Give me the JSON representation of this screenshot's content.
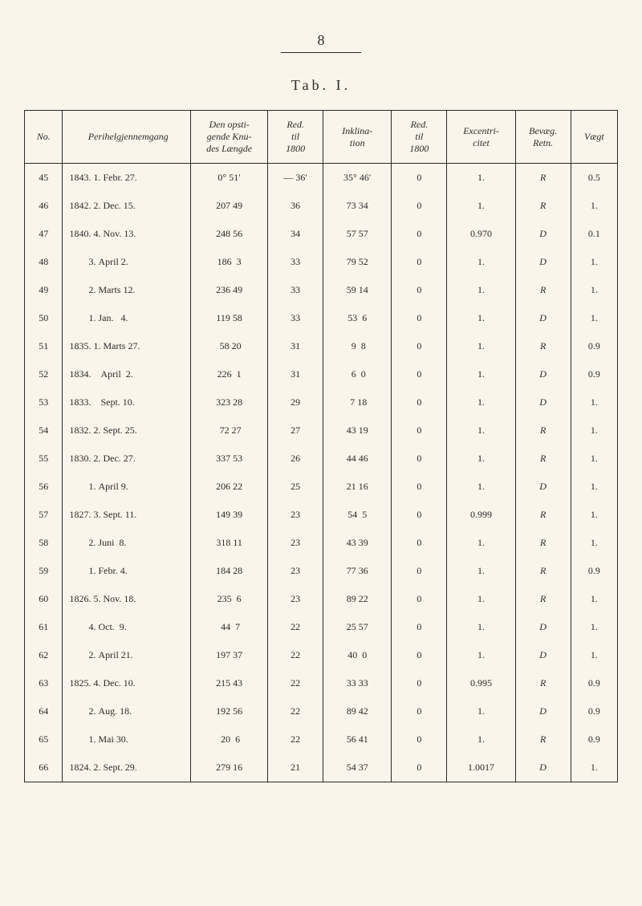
{
  "page_number": "8",
  "title": "Tab. I.",
  "headers": {
    "no": "No.",
    "peri": "Perihelgjennemgang",
    "knu": "Den opsti-<br>gende Knu-<br>des Længde",
    "red1": "Red.<br>til<br>1800",
    "ink": "Inklina-<br>tion",
    "red2": "Red.<br>til<br>1800",
    "exc": "Excentri-<br>citet",
    "bev": "Bevæg.<br>Retn.",
    "vag": "Vægt"
  },
  "rows": [
    {
      "no": "45",
      "peri": "1843. 1. Febr. 27.",
      "knu": "0° 51′",
      "red1": "— 36′",
      "ink": "35° 46′",
      "red2": "0",
      "exc": "1.",
      "bev": "R",
      "vag": "0.5"
    },
    {
      "no": "46",
      "peri": "1842. 2. Dec. 15.",
      "knu": "207 49",
      "red1": "36",
      "ink": "73 34",
      "red2": "0",
      "exc": "1.",
      "bev": "R",
      "vag": "1."
    },
    {
      "no": "47",
      "peri": "1840. 4. Nov. 13.",
      "knu": "248 56",
      "red1": "34",
      "ink": "57 57",
      "red2": "0",
      "exc": "0.970",
      "bev": "D",
      "vag": "0.1"
    },
    {
      "no": "48",
      "peri": "        3. April 2.",
      "knu": "186  3",
      "red1": "33",
      "ink": "79 52",
      "red2": "0",
      "exc": "1.",
      "bev": "D",
      "vag": "1."
    },
    {
      "no": "49",
      "peri": "        2. Marts 12.",
      "knu": "236 49",
      "red1": "33",
      "ink": "59 14",
      "red2": "0",
      "exc": "1.",
      "bev": "R",
      "vag": "1."
    },
    {
      "no": "50",
      "peri": "        1. Jan.   4.",
      "knu": "119 58",
      "red1": "33",
      "ink": "53  6",
      "red2": "0",
      "exc": "1.",
      "bev": "D",
      "vag": "1."
    },
    {
      "no": "51",
      "peri": "1835. 1. Marts 27.",
      "knu": " 58 20",
      "red1": "31",
      "ink": " 9  8",
      "red2": "0",
      "exc": "1.",
      "bev": "R",
      "vag": "0.9"
    },
    {
      "no": "52",
      "peri": "1834.    April  2.",
      "knu": "226  1",
      "red1": "31",
      "ink": " 6  0",
      "red2": "0",
      "exc": "1.",
      "bev": "D",
      "vag": "0.9"
    },
    {
      "no": "53",
      "peri": "1833.    Sept. 10.",
      "knu": "323 28",
      "red1": "29",
      "ink": " 7 18",
      "red2": "0",
      "exc": "1.",
      "bev": "D",
      "vag": "1."
    },
    {
      "no": "54",
      "peri": "1832. 2. Sept. 25.",
      "knu": " 72 27",
      "red1": "27",
      "ink": "43 19",
      "red2": "0",
      "exc": "1.",
      "bev": "R",
      "vag": "1."
    },
    {
      "no": "55",
      "peri": "1830. 2. Dec. 27.",
      "knu": "337 53",
      "red1": "26",
      "ink": "44 46",
      "red2": "0",
      "exc": "1.",
      "bev": "R",
      "vag": "1."
    },
    {
      "no": "56",
      "peri": "        1. April 9.",
      "knu": "206 22",
      "red1": "25",
      "ink": "21 16",
      "red2": "0",
      "exc": "1.",
      "bev": "D",
      "vag": "1."
    },
    {
      "no": "57",
      "peri": "1827. 3. Sept. 11.",
      "knu": "149 39",
      "red1": "23",
      "ink": "54  5",
      "red2": "0",
      "exc": "0.999",
      "bev": "R",
      "vag": "1."
    },
    {
      "no": "58",
      "peri": "        2. Juni  8.",
      "knu": "318 11",
      "red1": "23",
      "ink": "43 39",
      "red2": "0",
      "exc": "1.",
      "bev": "R",
      "vag": "1."
    },
    {
      "no": "59",
      "peri": "        1. Febr. 4.",
      "knu": "184 28",
      "red1": "23",
      "ink": "77 36",
      "red2": "0",
      "exc": "1.",
      "bev": "R",
      "vag": "0.9"
    },
    {
      "no": "60",
      "peri": "1826. 5. Nov. 18.",
      "knu": "235  6",
      "red1": "23",
      "ink": "89 22",
      "red2": "0",
      "exc": "1.",
      "bev": "R",
      "vag": "1."
    },
    {
      "no": "61",
      "peri": "        4. Oct.  9.",
      "knu": " 44  7",
      "red1": "22",
      "ink": "25 57",
      "red2": "0",
      "exc": "1.",
      "bev": "D",
      "vag": "1."
    },
    {
      "no": "62",
      "peri": "        2. April 21.",
      "knu": "197 37",
      "red1": "22",
      "ink": "40  0",
      "red2": "0",
      "exc": "1.",
      "bev": "D",
      "vag": "1."
    },
    {
      "no": "63",
      "peri": "1825. 4. Dec. 10.",
      "knu": "215 43",
      "red1": "22",
      "ink": "33 33",
      "red2": "0",
      "exc": "0.995",
      "bev": "R",
      "vag": "0.9"
    },
    {
      "no": "64",
      "peri": "        2. Aug. 18.",
      "knu": "192 56",
      "red1": "22",
      "ink": "89 42",
      "red2": "0",
      "exc": "1.",
      "bev": "D",
      "vag": "0.9"
    },
    {
      "no": "65",
      "peri": "        1. Mai 30.",
      "knu": " 20  6",
      "red1": "22",
      "ink": "56 41",
      "red2": "0",
      "exc": "1.",
      "bev": "R",
      "vag": "0.9"
    },
    {
      "no": "66",
      "peri": "1824. 2. Sept. 29.",
      "knu": "279 16",
      "red1": "21",
      "ink": "54 37",
      "red2": "0",
      "exc": "1.0017",
      "bev": "D",
      "vag": "1."
    }
  ]
}
